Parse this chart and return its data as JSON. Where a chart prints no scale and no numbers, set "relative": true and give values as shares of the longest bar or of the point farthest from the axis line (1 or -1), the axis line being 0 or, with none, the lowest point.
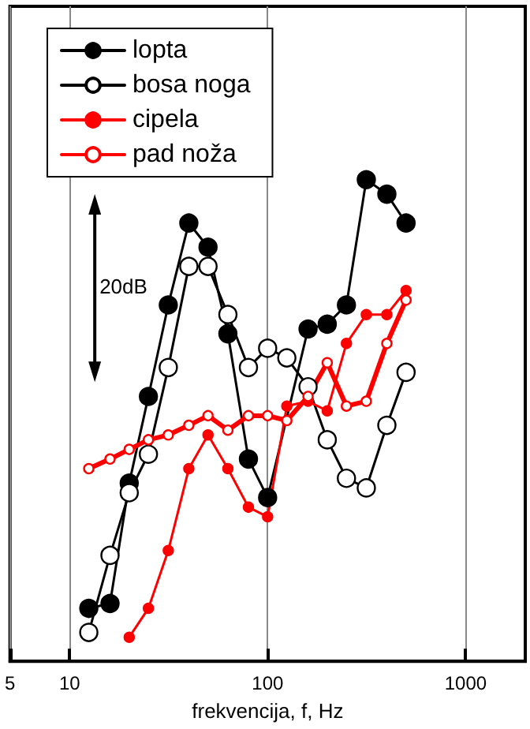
{
  "chart_data": {
    "type": "line",
    "xlabel": "frekvencija, f, Hz",
    "annotations": [
      "20dB"
    ],
    "relative": true,
    "log": "x",
    "xlim": [
      5,
      2000
    ],
    "xticks": [
      5,
      10,
      100,
      1000
    ],
    "grid": "x",
    "legend": "top left",
    "marker": "circle",
    "line_style": "solid",
    "x": [
      12.5,
      16,
      20,
      25,
      31.5,
      40,
      50,
      63,
      80,
      100,
      125,
      160,
      200,
      250,
      315,
      400,
      500
    ],
    "series": [
      {
        "name": "lopta",
        "color": "#000000",
        "values": [
          0.11,
          0.12,
          0.37,
          0.55,
          0.74,
          0.91,
          0.86,
          0.68,
          0.42,
          0.34,
          null,
          0.69,
          0.7,
          0.74,
          1,
          0.97,
          0.91
        ]
      },
      {
        "name": "bosa noga",
        "color": "#000000",
        "values": [
          0.06,
          0.22,
          0.35,
          0.43,
          0.61,
          0.82,
          0.82,
          0.72,
          0.61,
          0.65,
          0.63,
          0.57,
          0.46,
          0.38,
          0.36,
          0.49,
          0.6
        ]
      },
      {
        "name": "cipela",
        "color": "#ff0000",
        "x": [
          20,
          25,
          31.5,
          40,
          50,
          63,
          80,
          100,
          125,
          160,
          200,
          250,
          315,
          400,
          500
        ],
        "values": [
          0.05,
          0.11,
          0.23,
          0.4,
          0.47,
          0.4,
          0.32,
          0.3,
          0.53,
          0.54,
          0.52,
          0.66,
          0.72,
          0.72,
          0.77
        ]
      },
      {
        "name": "pad noža",
        "color": "#ff0000",
        "values": [
          0.4,
          0.42,
          0.44,
          0.46,
          0.47,
          0.49,
          0.51,
          0.48,
          0.51,
          0.51,
          0.5,
          0.55,
          0.62,
          0.53,
          0.54,
          0.66,
          0.75
        ]
      }
    ]
  }
}
